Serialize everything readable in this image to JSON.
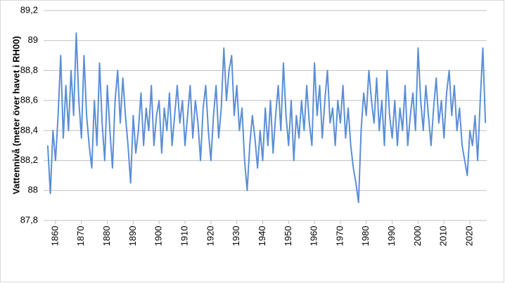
{
  "chart_data": {
    "type": "line",
    "y_label": "Vattennivå (meter över havet i RH00)",
    "color": "#5b8fd6",
    "grid": true,
    "xlim": [
      1855.4,
      2026.5
    ],
    "xticks": [
      1860,
      1870,
      1880,
      1890,
      1900,
      1910,
      1920,
      1930,
      1940,
      1950,
      1960,
      1970,
      1980,
      1990,
      2000,
      2010,
      2020
    ],
    "ylim": [
      87.8,
      89.2
    ],
    "yticks": [
      {
        "value": 87.8,
        "label": "87,8"
      },
      88,
      {
        "value": 88.2,
        "label": "88,2"
      },
      {
        "value": 88.4,
        "label": "88,4"
      },
      {
        "value": 88.6,
        "label": "88,6"
      },
      {
        "value": 88.8,
        "label": "88,8"
      },
      89,
      {
        "value": 89.2,
        "label": "89,2"
      }
    ],
    "x": [
      1857,
      1858,
      1859,
      1860,
      1861,
      1862,
      1863,
      1864,
      1865,
      1866,
      1867,
      1868,
      1869,
      1870,
      1871,
      1872,
      1873,
      1874,
      1875,
      1876,
      1877,
      1878,
      1879,
      1880,
      1881,
      1882,
      1883,
      1884,
      1885,
      1886,
      1887,
      1888,
      1889,
      1890,
      1891,
      1892,
      1893,
      1894,
      1895,
      1896,
      1897,
      1898,
      1899,
      1900,
      1901,
      1902,
      1903,
      1904,
      1905,
      1906,
      1907,
      1908,
      1909,
      1910,
      1911,
      1912,
      1913,
      1914,
      1915,
      1916,
      1917,
      1918,
      1919,
      1920,
      1921,
      1922,
      1923,
      1924,
      1925,
      1926,
      1927,
      1928,
      1929,
      1930,
      1931,
      1932,
      1933,
      1934,
      1935,
      1936,
      1937,
      1938,
      1939,
      1940,
      1941,
      1942,
      1943,
      1944,
      1945,
      1946,
      1947,
      1948,
      1949,
      1950,
      1951,
      1952,
      1953,
      1954,
      1955,
      1956,
      1957,
      1958,
      1959,
      1960,
      1961,
      1962,
      1963,
      1964,
      1965,
      1966,
      1967,
      1968,
      1969,
      1970,
      1971,
      1972,
      1973,
      1974,
      1975,
      1976,
      1977,
      1978,
      1979,
      1980,
      1981,
      1982,
      1983,
      1984,
      1985,
      1986,
      1987,
      1988,
      1989,
      1990,
      1991,
      1992,
      1993,
      1994,
      1995,
      1996,
      1997,
      1998,
      1999,
      2000,
      2001,
      2002,
      2003,
      2004,
      2005,
      2006,
      2007,
      2008,
      2009,
      2010,
      2011,
      2012,
      2013,
      2014,
      2015,
      2016,
      2017,
      2018,
      2019,
      2020,
      2021,
      2022,
      2023,
      2024,
      2025,
      2026
    ],
    "values": [
      88.3,
      87.98,
      88.4,
      88.2,
      88.5,
      88.9,
      88.35,
      88.7,
      88.4,
      88.8,
      88.5,
      89.05,
      88.6,
      88.35,
      88.9,
      88.5,
      88.3,
      88.15,
      88.6,
      88.3,
      88.85,
      88.45,
      88.2,
      88.7,
      88.4,
      88.15,
      88.6,
      88.8,
      88.45,
      88.75,
      88.5,
      88.3,
      88.05,
      88.5,
      88.25,
      88.4,
      88.65,
      88.3,
      88.55,
      88.4,
      88.7,
      88.3,
      88.5,
      88.6,
      88.25,
      88.55,
      88.4,
      88.65,
      88.3,
      88.5,
      88.7,
      88.45,
      88.6,
      88.3,
      88.5,
      88.7,
      88.35,
      88.6,
      88.45,
      88.2,
      88.55,
      88.7,
      88.4,
      88.2,
      88.5,
      88.7,
      88.35,
      88.55,
      88.95,
      88.6,
      88.8,
      88.9,
      88.5,
      88.7,
      88.4,
      88.55,
      88.2,
      88.0,
      88.3,
      88.5,
      88.35,
      88.15,
      88.4,
      88.2,
      88.55,
      88.3,
      88.6,
      88.25,
      88.5,
      88.7,
      88.4,
      88.85,
      88.5,
      88.3,
      88.6,
      88.2,
      88.5,
      88.35,
      88.6,
      88.4,
      88.7,
      88.45,
      88.3,
      88.85,
      88.5,
      88.7,
      88.35,
      88.6,
      88.8,
      88.45,
      88.55,
      88.3,
      88.6,
      88.45,
      88.7,
      88.35,
      88.55,
      88.3,
      88.15,
      88.05,
      87.92,
      88.4,
      88.65,
      88.5,
      88.8,
      88.6,
      88.45,
      88.75,
      88.4,
      88.6,
      88.3,
      88.8,
      88.5,
      88.35,
      88.6,
      88.3,
      88.55,
      88.4,
      88.7,
      88.3,
      88.5,
      88.65,
      88.4,
      88.95,
      88.6,
      88.4,
      88.7,
      88.5,
      88.3,
      88.55,
      88.75,
      88.45,
      88.6,
      88.35,
      88.65,
      88.8,
      88.5,
      88.7,
      88.4,
      88.55,
      88.3,
      88.2,
      88.1,
      88.4,
      88.3,
      88.5,
      88.2,
      88.6,
      88.95,
      88.45
    ]
  }
}
